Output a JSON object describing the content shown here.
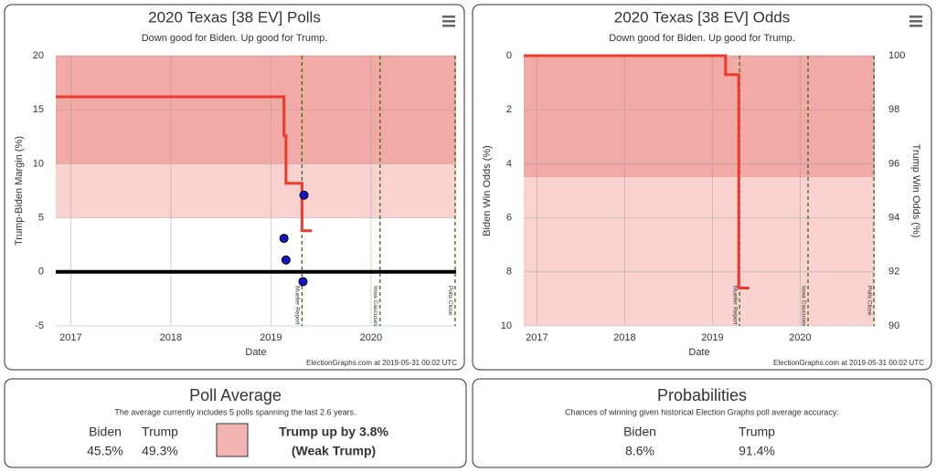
{
  "chart_data": [
    {
      "type": "line",
      "title": "2020 Texas [38 EV] Polls",
      "subtitle": "Down good for Biden. Up good for Trump.",
      "x_label": "Date",
      "y_label": "Trump-Biden Margin (%)",
      "credit": "ElectionGraphs.com at 2019-05-31 00:02 UTC",
      "xlim": [
        2016.85,
        2020.85
      ],
      "xticks": [
        2017,
        2018,
        2019,
        2020
      ],
      "ylim": [
        -5,
        20
      ],
      "yticks": [
        -5,
        0,
        5,
        10,
        15,
        20
      ],
      "grid": true,
      "bands": [
        {
          "from": 5,
          "to": 10,
          "color": "#fad3d1"
        },
        {
          "from": 10,
          "to": 20,
          "color": "#f2aaa6"
        }
      ],
      "reference_line": 0,
      "events": [
        {
          "label": "Mueller Report",
          "x": 2019.31
        },
        {
          "label": "Iowa Caucuses",
          "x": 2020.09
        },
        {
          "label": "Polls Close",
          "x": 2020.84
        }
      ],
      "series": [
        {
          "type": "line",
          "color": "#ee3a2e",
          "x": [
            2016.85,
            2019.13,
            2019.13,
            2019.15,
            2019.15,
            2019.31,
            2019.31,
            2019.41
          ],
          "values": [
            16.2,
            16.2,
            12.6,
            12.6,
            8.2,
            8.2,
            3.8,
            3.8
          ]
        },
        {
          "type": "scatter",
          "color": "#1414c8",
          "x": [
            2019.13,
            2019.15,
            2019.33,
            2019.32
          ],
          "values": [
            3.1,
            1.1,
            7.1,
            -0.9
          ]
        }
      ]
    },
    {
      "type": "line",
      "title": "2020 Texas [38 EV] Odds",
      "subtitle": "Down good for Biden. Up good for Trump.",
      "x_label": "Date",
      "y_label": "Biden Win Odds (%)",
      "y2_label": "Trump Win Odds (%)",
      "credit": "ElectionGraphs.com at 2019-05-31 00:02 UTC",
      "xlim": [
        2016.85,
        2020.85
      ],
      "xticks": [
        2017,
        2018,
        2019,
        2020
      ],
      "ylim": [
        0,
        10
      ],
      "yticks": [
        0,
        2,
        4,
        6,
        8,
        10
      ],
      "y_inverted": true,
      "y2lim": [
        90,
        100
      ],
      "y2ticks": [
        90,
        92,
        94,
        96,
        98,
        100
      ],
      "grid": true,
      "bands": [
        {
          "from": 0,
          "to": 4.5,
          "color": "#f2aaa6"
        },
        {
          "from": 4.5,
          "to": 10,
          "color": "#fad3d1"
        }
      ],
      "events": [
        {
          "label": "Mueller Report",
          "x": 2019.31
        },
        {
          "label": "Iowa Caucuses",
          "x": 2020.09
        },
        {
          "label": "Polls Close",
          "x": 2020.84
        }
      ],
      "series": [
        {
          "type": "line",
          "color": "#ee3a2e",
          "x": [
            2016.85,
            2019.15,
            2019.15,
            2019.3,
            2019.3,
            2019.42
          ],
          "values": [
            0,
            0,
            0.7,
            0.7,
            8.6,
            8.6
          ]
        }
      ]
    }
  ],
  "panels": [
    {
      "title": "Poll Average",
      "description": "The average currently includes 5 polls spanning the last 2.6 years.",
      "candidates": [
        {
          "name": "Biden",
          "value": "45.5%"
        },
        {
          "name": "Trump",
          "value": "49.3%"
        }
      ],
      "swatch_color": "#f2b5b2",
      "summary": [
        "Trump up by 3.8%",
        "(Weak Trump)"
      ]
    },
    {
      "title": "Probabilities",
      "description": "Chances of winning given historical Election Graphs poll average accuracy:",
      "candidates": [
        {
          "name": "Biden",
          "value": "8.6%"
        },
        {
          "name": "Trump",
          "value": "91.4%"
        }
      ]
    }
  ]
}
